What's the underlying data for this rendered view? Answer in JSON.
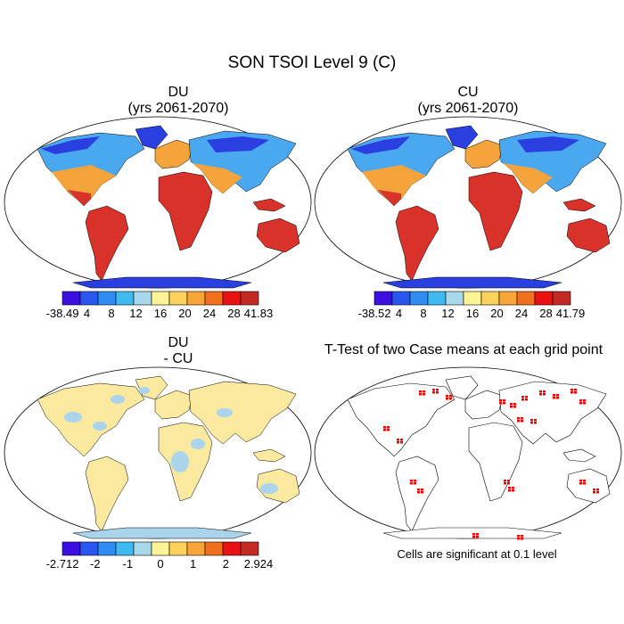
{
  "page": {
    "title": "SON TSOI Level 9 (C)"
  },
  "panels": {
    "du": {
      "title_line1": "DU",
      "title_line2": "(yrs 2061-2070)",
      "colorbar": {
        "colors": [
          "#3a0fe0",
          "#2a56f0",
          "#2f8cf4",
          "#3fb9f2",
          "#a8d8ec",
          "#fff398",
          "#fcd15c",
          "#f8a638",
          "#f0701e",
          "#e81212",
          "#c42a24"
        ],
        "labels": [
          "-38.49",
          "4",
          "8",
          "12",
          "16",
          "20",
          "24",
          "28",
          "41.83"
        ]
      }
    },
    "cu": {
      "title_line1": "CU",
      "title_line2": "(yrs 2061-2070)",
      "colorbar": {
        "colors": [
          "#3a0fe0",
          "#2a56f0",
          "#2f8cf4",
          "#3fb9f2",
          "#a8d8ec",
          "#fff398",
          "#fcd15c",
          "#f8a638",
          "#f0701e",
          "#e81212",
          "#c42a24"
        ],
        "labels": [
          "-38.52",
          "4",
          "8",
          "12",
          "16",
          "20",
          "24",
          "28",
          "41.79"
        ]
      }
    },
    "diff": {
      "title_line1": "DU",
      "title_line2": "- CU",
      "colorbar": {
        "colors": [
          "#3a0fe0",
          "#2a56f0",
          "#2f8cf4",
          "#3fb9f2",
          "#a8d8ec",
          "#fff398",
          "#fcd15c",
          "#f8a638",
          "#f0701e",
          "#e81212",
          "#c42a24"
        ],
        "labels": [
          "-2.712",
          "-2",
          "-1",
          "0",
          "1",
          "2",
          "2.924"
        ]
      }
    },
    "ttest": {
      "title": "T-Test of two Case means at each grid point",
      "note": "Cells are significant at 0.1 level"
    }
  },
  "colors": {
    "ocean": "#ffffff",
    "coast": "#000000",
    "hot": "#d8322a",
    "warm": "#f4a43a",
    "mild": "#fde98a",
    "cool": "#4aa8f0",
    "cold": "#2a3fe0",
    "diff_pos": "#fbe9a0",
    "diff_neg": "#a9d4ec",
    "sig": "#ee0000"
  }
}
